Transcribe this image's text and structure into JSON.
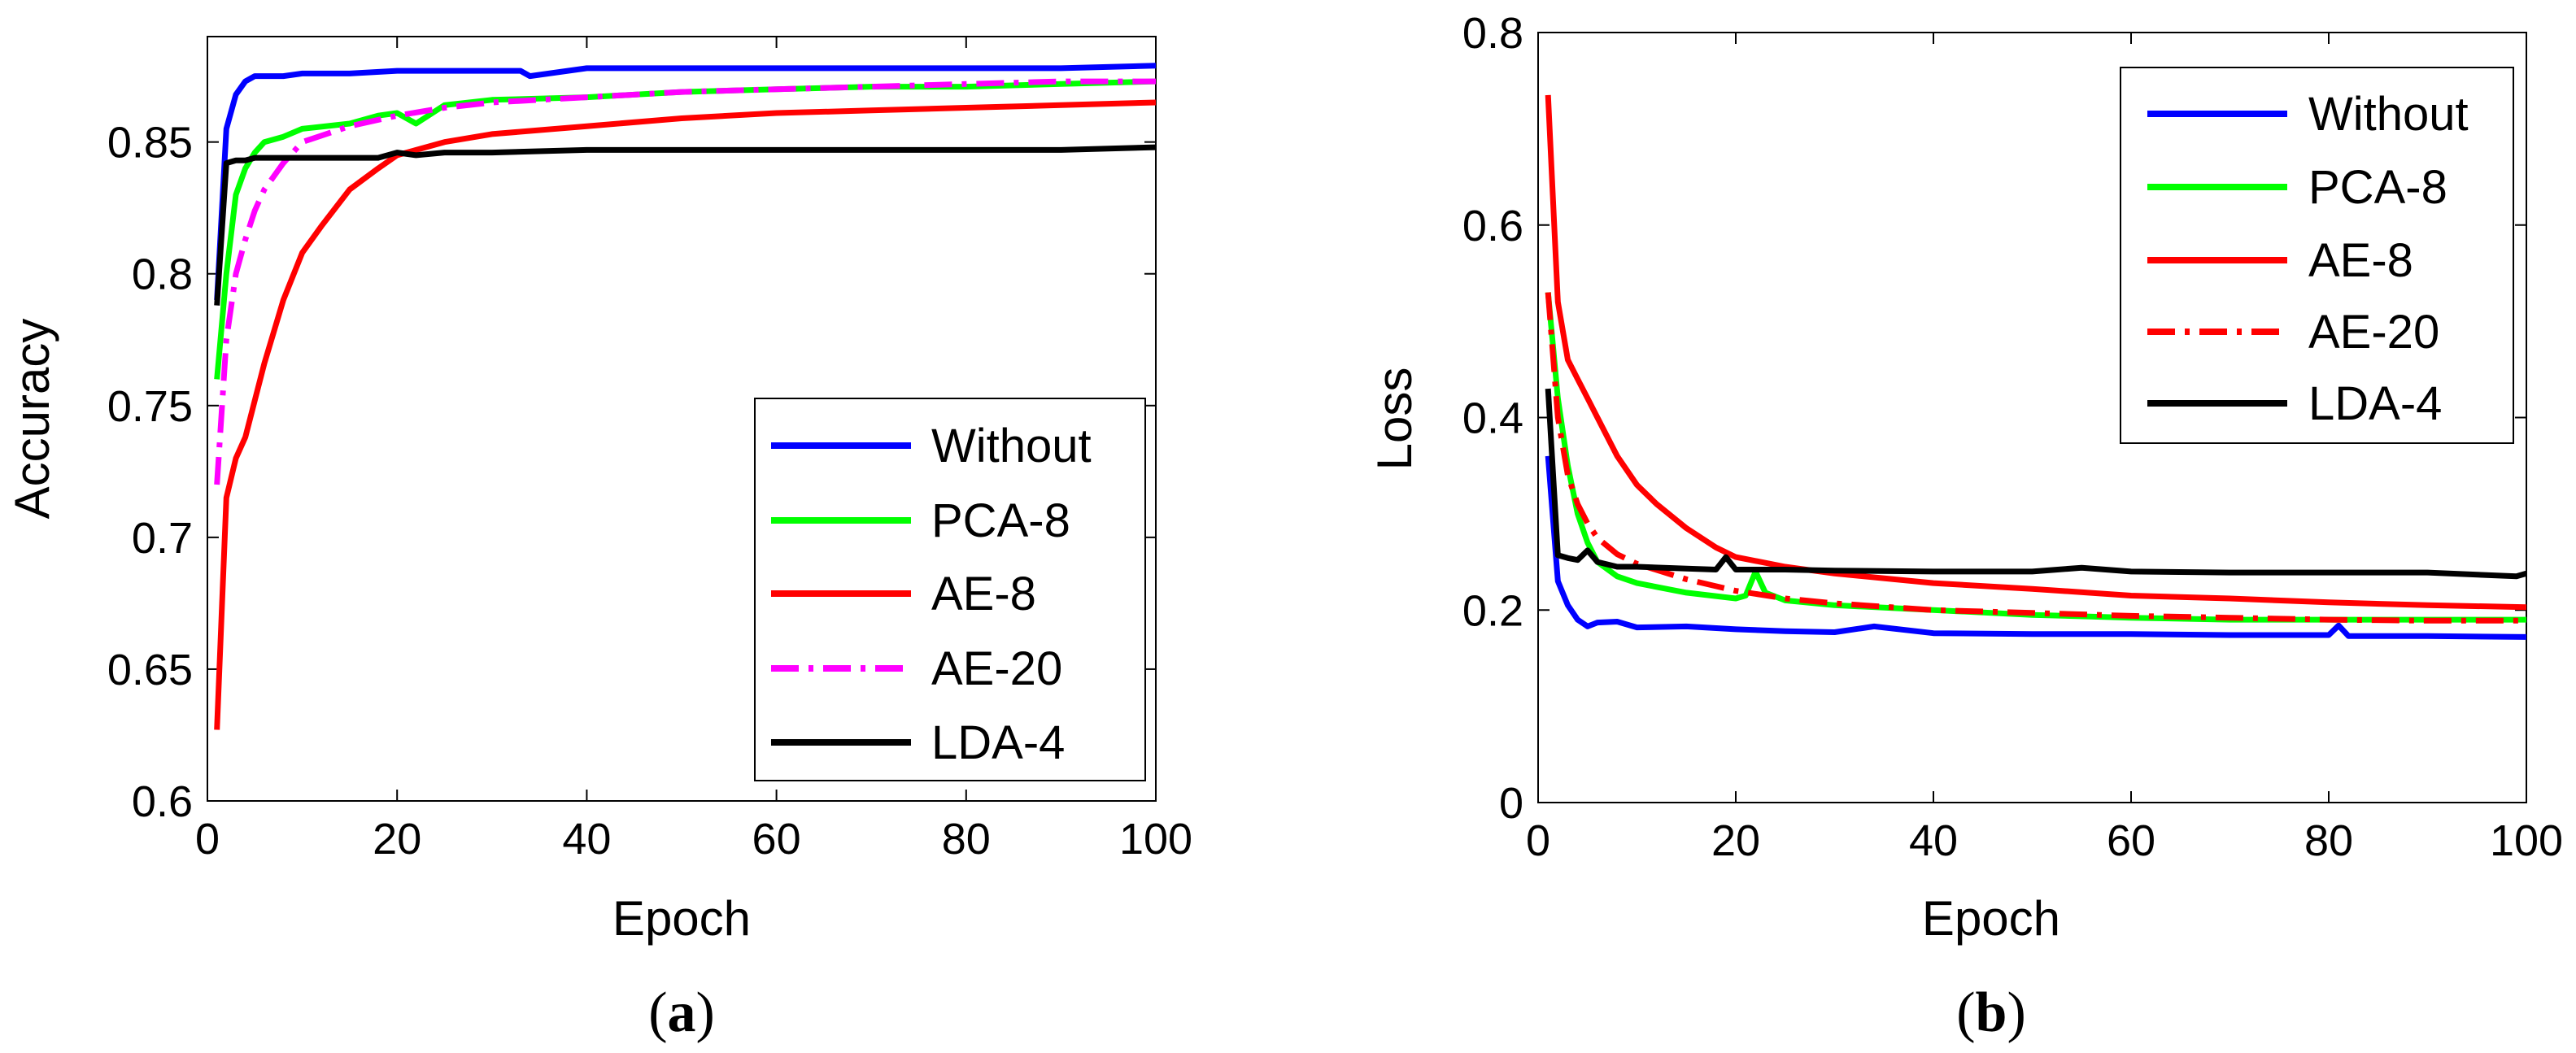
{
  "chart_data": [
    {
      "type": "line",
      "caption_open": "(",
      "caption_letter": "a",
      "caption_close": ")",
      "xlabel": "Epoch",
      "ylabel": "Accuracy",
      "xlim": [
        0,
        100
      ],
      "ylim": [
        0.6,
        0.89
      ],
      "xticks": [
        0,
        20,
        40,
        60,
        80,
        100
      ],
      "yticks": [
        0.6,
        0.65,
        0.7,
        0.75,
        0.8,
        0.85
      ],
      "ytick_labels": [
        "0.6",
        "0.65",
        "0.7",
        "0.75",
        "0.8",
        "0.85"
      ],
      "legend": "bottom-right",
      "series": [
        {
          "name": "Without",
          "color": "#0000ff",
          "dash": "solid",
          "x": [
            1,
            2,
            3,
            4,
            5,
            6,
            8,
            10,
            15,
            20,
            25,
            30,
            33,
            34,
            40,
            50,
            60,
            70,
            80,
            90,
            100
          ],
          "values": [
            0.79,
            0.855,
            0.868,
            0.873,
            0.875,
            0.875,
            0.875,
            0.876,
            0.876,
            0.877,
            0.877,
            0.877,
            0.877,
            0.875,
            0.878,
            0.878,
            0.878,
            0.878,
            0.878,
            0.878,
            0.879
          ]
        },
        {
          "name": "PCA-8",
          "color": "#00ff00",
          "dash": "solid",
          "x": [
            1,
            2,
            3,
            4,
            5,
            6,
            8,
            10,
            15,
            18,
            20,
            22,
            25,
            30,
            40,
            50,
            60,
            70,
            80,
            90,
            100
          ],
          "values": [
            0.76,
            0.8,
            0.83,
            0.84,
            0.846,
            0.85,
            0.852,
            0.855,
            0.857,
            0.86,
            0.861,
            0.857,
            0.864,
            0.866,
            0.867,
            0.869,
            0.87,
            0.871,
            0.871,
            0.872,
            0.873
          ]
        },
        {
          "name": "AE-8",
          "color": "#ff0000",
          "dash": "solid",
          "x": [
            1,
            2,
            3,
            4,
            5,
            6,
            8,
            10,
            12,
            15,
            18,
            20,
            25,
            30,
            40,
            50,
            60,
            70,
            80,
            90,
            100
          ],
          "values": [
            0.627,
            0.715,
            0.73,
            0.738,
            0.752,
            0.766,
            0.79,
            0.808,
            0.818,
            0.832,
            0.84,
            0.845,
            0.85,
            0.853,
            0.856,
            0.859,
            0.861,
            0.862,
            0.863,
            0.864,
            0.865
          ]
        },
        {
          "name": "AE-20",
          "color": "#ff00ff",
          "dash": "dashdot",
          "x": [
            1,
            2,
            3,
            4,
            5,
            6,
            8,
            10,
            15,
            20,
            25,
            30,
            40,
            50,
            60,
            70,
            80,
            90,
            100
          ],
          "values": [
            0.72,
            0.775,
            0.8,
            0.813,
            0.824,
            0.832,
            0.842,
            0.85,
            0.856,
            0.86,
            0.863,
            0.865,
            0.867,
            0.869,
            0.87,
            0.871,
            0.872,
            0.873,
            0.873
          ]
        },
        {
          "name": "LDA-4",
          "color": "#000000",
          "dash": "solid",
          "x": [
            1,
            2,
            3,
            4,
            5,
            10,
            18,
            20,
            22,
            25,
            30,
            40,
            50,
            60,
            70,
            80,
            90,
            100
          ],
          "values": [
            0.788,
            0.842,
            0.843,
            0.843,
            0.844,
            0.844,
            0.844,
            0.846,
            0.845,
            0.846,
            0.846,
            0.847,
            0.847,
            0.847,
            0.847,
            0.847,
            0.847,
            0.848
          ]
        }
      ]
    },
    {
      "type": "line",
      "caption_open": "(",
      "caption_letter": "b",
      "caption_close": ")",
      "xlabel": "Epoch",
      "ylabel": "Loss",
      "xlim": [
        0,
        100
      ],
      "ylim": [
        0,
        0.8
      ],
      "xticks": [
        0,
        20,
        40,
        60,
        80,
        100
      ],
      "yticks": [
        0,
        0.2,
        0.4,
        0.6,
        0.8
      ],
      "ytick_labels": [
        "0",
        "0.2",
        "0.4",
        "0.6",
        "0.8"
      ],
      "legend": "top-right",
      "series": [
        {
          "name": "Without",
          "color": "#0000ff",
          "dash": "solid",
          "x": [
            1,
            2,
            3,
            4,
            5,
            6,
            8,
            10,
            15,
            20,
            25,
            30,
            34,
            40,
            50,
            60,
            70,
            80,
            81,
            82,
            90,
            100
          ],
          "values": [
            0.36,
            0.23,
            0.205,
            0.19,
            0.183,
            0.187,
            0.188,
            0.182,
            0.183,
            0.18,
            0.178,
            0.177,
            0.183,
            0.176,
            0.175,
            0.175,
            0.174,
            0.174,
            0.184,
            0.173,
            0.173,
            0.172
          ]
        },
        {
          "name": "PCA-8",
          "color": "#00ff00",
          "dash": "solid",
          "x": [
            1,
            2,
            3,
            4,
            5,
            6,
            8,
            10,
            15,
            20,
            21,
            22,
            23,
            25,
            30,
            40,
            50,
            60,
            70,
            80,
            90,
            100
          ],
          "values": [
            0.53,
            0.42,
            0.35,
            0.3,
            0.27,
            0.25,
            0.235,
            0.228,
            0.218,
            0.212,
            0.215,
            0.24,
            0.218,
            0.21,
            0.205,
            0.2,
            0.195,
            0.192,
            0.19,
            0.19,
            0.19,
            0.19
          ]
        },
        {
          "name": "AE-8",
          "color": "#ff0000",
          "dash": "solid",
          "x": [
            1,
            2,
            3,
            4,
            5,
            6,
            8,
            10,
            12,
            15,
            18,
            20,
            25,
            30,
            40,
            50,
            60,
            70,
            80,
            90,
            100
          ],
          "values": [
            0.735,
            0.52,
            0.46,
            0.44,
            0.42,
            0.4,
            0.36,
            0.33,
            0.31,
            0.285,
            0.265,
            0.255,
            0.245,
            0.238,
            0.228,
            0.222,
            0.215,
            0.212,
            0.208,
            0.205,
            0.203
          ]
        },
        {
          "name": "AE-20",
          "color": "#ff0000",
          "dash": "dashdot",
          "x": [
            1,
            2,
            3,
            4,
            5,
            6,
            8,
            10,
            15,
            20,
            25,
            30,
            40,
            50,
            60,
            70,
            80,
            90,
            100
          ],
          "values": [
            0.53,
            0.4,
            0.34,
            0.31,
            0.29,
            0.275,
            0.258,
            0.248,
            0.232,
            0.22,
            0.212,
            0.207,
            0.2,
            0.197,
            0.194,
            0.192,
            0.19,
            0.189,
            0.189
          ]
        },
        {
          "name": "LDA-4",
          "color": "#000000",
          "dash": "solid",
          "x": [
            1,
            2,
            3,
            4,
            5,
            6,
            8,
            10,
            15,
            18,
            19,
            20,
            25,
            30,
            40,
            50,
            55,
            60,
            70,
            80,
            90,
            99,
            100
          ],
          "values": [
            0.43,
            0.257,
            0.254,
            0.252,
            0.262,
            0.25,
            0.245,
            0.245,
            0.243,
            0.242,
            0.255,
            0.242,
            0.242,
            0.241,
            0.24,
            0.24,
            0.244,
            0.24,
            0.239,
            0.239,
            0.239,
            0.235,
            0.238
          ]
        }
      ]
    }
  ]
}
